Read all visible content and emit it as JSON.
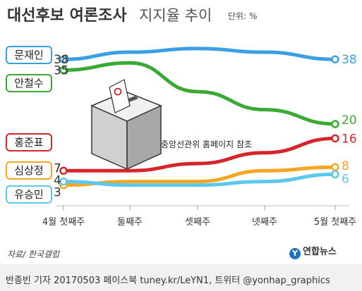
{
  "header": {
    "title": "대선후보 여론조사",
    "subtitle": "지지율 추이",
    "unit": "단위: %"
  },
  "chart_data": {
    "type": "line",
    "title": "대선후보 여론조사",
    "subtitle": "지지율 추이",
    "unit": "단위: %",
    "categories": [
      "4월 첫째주",
      "둘째주",
      "셋째주",
      "넷째주",
      "5월 첫째주"
    ],
    "ylim": [
      0,
      45
    ],
    "grid": false,
    "series": [
      {
        "name": "문재인",
        "values": [
          38,
          40,
          41,
          40,
          38
        ],
        "color": "#3c9ee3"
      },
      {
        "name": "안철수",
        "values": [
          35,
          37,
          29,
          24,
          20
        ],
        "color": "#3aaa35"
      },
      {
        "name": "홍준표",
        "values": [
          7,
          7,
          9,
          12,
          16
        ],
        "color": "#d6262c"
      },
      {
        "name": "심상정",
        "values": [
          3,
          4,
          4,
          7,
          8
        ],
        "color": "#f5a623"
      },
      {
        "name": "유승민",
        "values": [
          4,
          3,
          3,
          4,
          6
        ],
        "color": "#5bc8ee"
      }
    ],
    "annotations": {
      "start_labels": [
        "38",
        "35",
        "7",
        "3",
        "4"
      ],
      "end_labels": [
        "38",
        "20",
        "16",
        "8",
        "6"
      ]
    }
  },
  "note": "중앙선관위 홈페이지 참조",
  "source": "자료/ 한국갤럽",
  "logo": {
    "icon": "Y",
    "text": "연합뉴스"
  },
  "credit": "반종빈 기자 20170503 페이스북 tuney.kr/LeYN1, 트위터 @yonhap_graphics"
}
